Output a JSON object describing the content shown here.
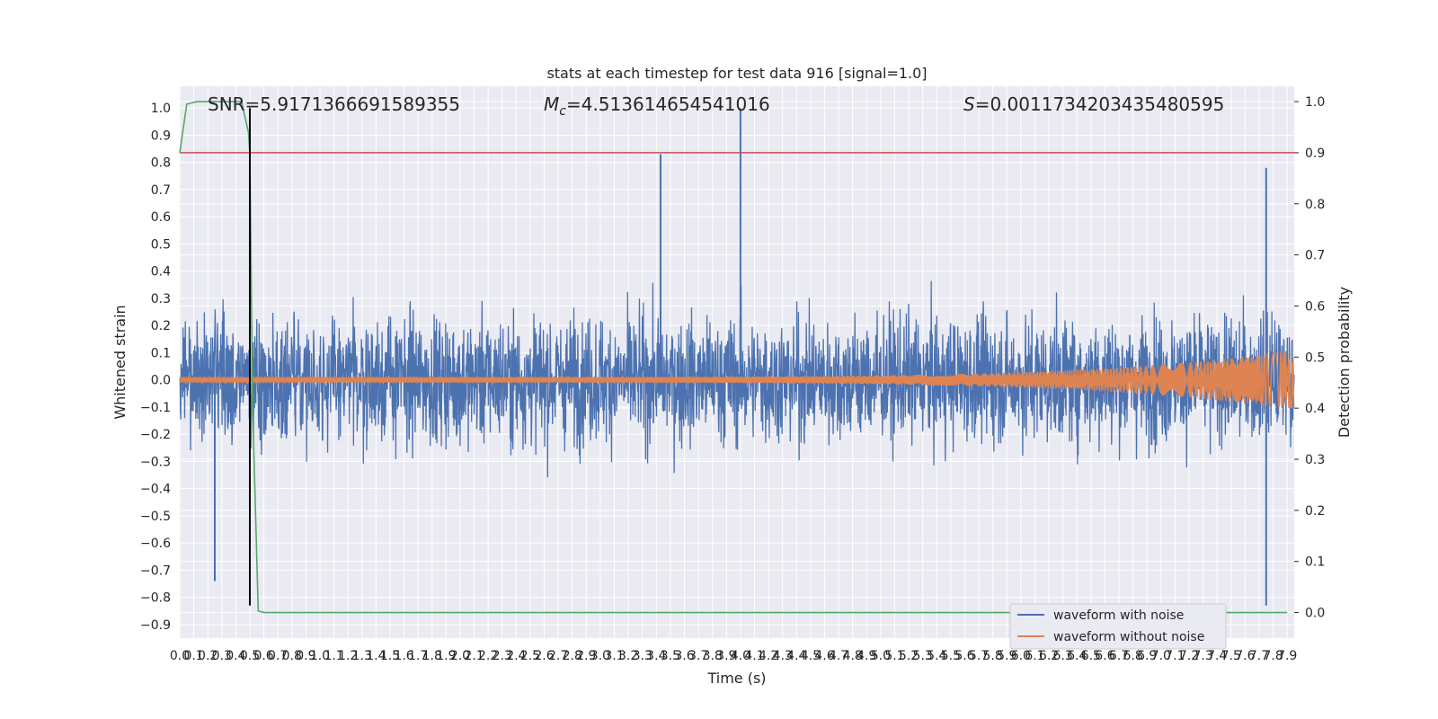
{
  "chart_data": {
    "type": "line",
    "title": "stats at each timestep for test data 916 [signal=1.0]",
    "xlabel": "Time (s)",
    "ylabel": "Whitened strain",
    "y2label": "Detection probability",
    "xlim": [
      0.0,
      7.95
    ],
    "ylim": [
      -0.95,
      1.08
    ],
    "y2lim": [
      -0.05,
      1.03
    ],
    "grid": true,
    "legend_position": "lower-right",
    "xticks": [
      0.0,
      0.1,
      0.2,
      0.3,
      0.4,
      0.5,
      0.6,
      0.7,
      0.8,
      0.9,
      1.0,
      1.1,
      1.2,
      1.3,
      1.4,
      1.5,
      1.6,
      1.7,
      1.8,
      1.9,
      2.0,
      2.1,
      2.2,
      2.3,
      2.4,
      2.5,
      2.6,
      2.7,
      2.8,
      2.9,
      3.0,
      3.1,
      3.2,
      3.3,
      3.4,
      3.5,
      3.6,
      3.7,
      3.8,
      3.9,
      4.0,
      4.1,
      4.2,
      4.3,
      4.4,
      4.5,
      4.6,
      4.7,
      4.8,
      4.9,
      5.0,
      5.1,
      5.2,
      5.3,
      5.4,
      5.5,
      5.6,
      5.7,
      5.8,
      5.9,
      6.0,
      6.1,
      6.2,
      6.3,
      6.4,
      6.5,
      6.6,
      6.7,
      6.8,
      6.9,
      7.0,
      7.1,
      7.2,
      7.3,
      7.4,
      7.5,
      7.6,
      7.7,
      7.8,
      7.9
    ],
    "yticks": [
      -0.9,
      -0.8,
      -0.7,
      -0.6,
      -0.5,
      -0.4,
      -0.3,
      -0.2,
      -0.1,
      0.0,
      0.1,
      0.2,
      0.3,
      0.4,
      0.5,
      0.6,
      0.7,
      0.8,
      0.9,
      1.0
    ],
    "y2ticks": [
      0.0,
      0.1,
      0.2,
      0.3,
      0.4,
      0.5,
      0.6,
      0.7,
      0.8,
      0.9,
      1.0
    ],
    "stats": {
      "snr_label": "SNR=5.9171366691589355",
      "mc_prefix": "M",
      "mc_sub": "c",
      "mc_value": "=4.513614654541016",
      "s_prefix": "S",
      "s_value": "=0.0011734203435480595"
    },
    "series": [
      {
        "name": "waveform with noise",
        "color": "#4c72b0",
        "description_level": "dense noise, amplitude mostly within ±0.5",
        "peaks": [
          {
            "x": 0.25,
            "y": -0.74
          },
          {
            "x": 3.43,
            "y": 0.83
          },
          {
            "x": 4.0,
            "y": 1.0
          },
          {
            "x": 7.75,
            "y": -0.83
          },
          {
            "x": 7.75,
            "y": 0.78
          }
        ]
      },
      {
        "name": "waveform without noise",
        "color": "#dd8452",
        "chirp_start_amplitude": 0.01,
        "chirp_end_amplitude": 0.11
      }
    ],
    "detection_probability": {
      "color": "#55a868",
      "x": [
        0.0,
        0.05,
        0.12,
        0.2,
        0.3,
        0.4,
        0.44,
        0.49,
        0.5,
        0.52,
        0.56,
        0.6,
        1.0,
        2.0,
        3.0,
        4.0,
        5.0,
        6.0,
        7.0,
        7.9
      ],
      "y": [
        0.9,
        0.995,
        1.0,
        1.0,
        1.0,
        1.0,
        1.0,
        0.94,
        0.9,
        0.4,
        0.003,
        0.0,
        0.0,
        0.0,
        0.0,
        0.0,
        0.0,
        0.0,
        0.0,
        0.0
      ]
    },
    "threshold": {
      "color": "#c44e52",
      "y2": 0.9
    },
    "marker_time": {
      "color": "#000000",
      "x": 0.5,
      "y_from": -0.83,
      "y_to": 1.0
    },
    "legend": [
      {
        "label": "waveform with noise",
        "color": "#4c72b0"
      },
      {
        "label": "waveform without noise",
        "color": "#dd8452"
      }
    ]
  }
}
